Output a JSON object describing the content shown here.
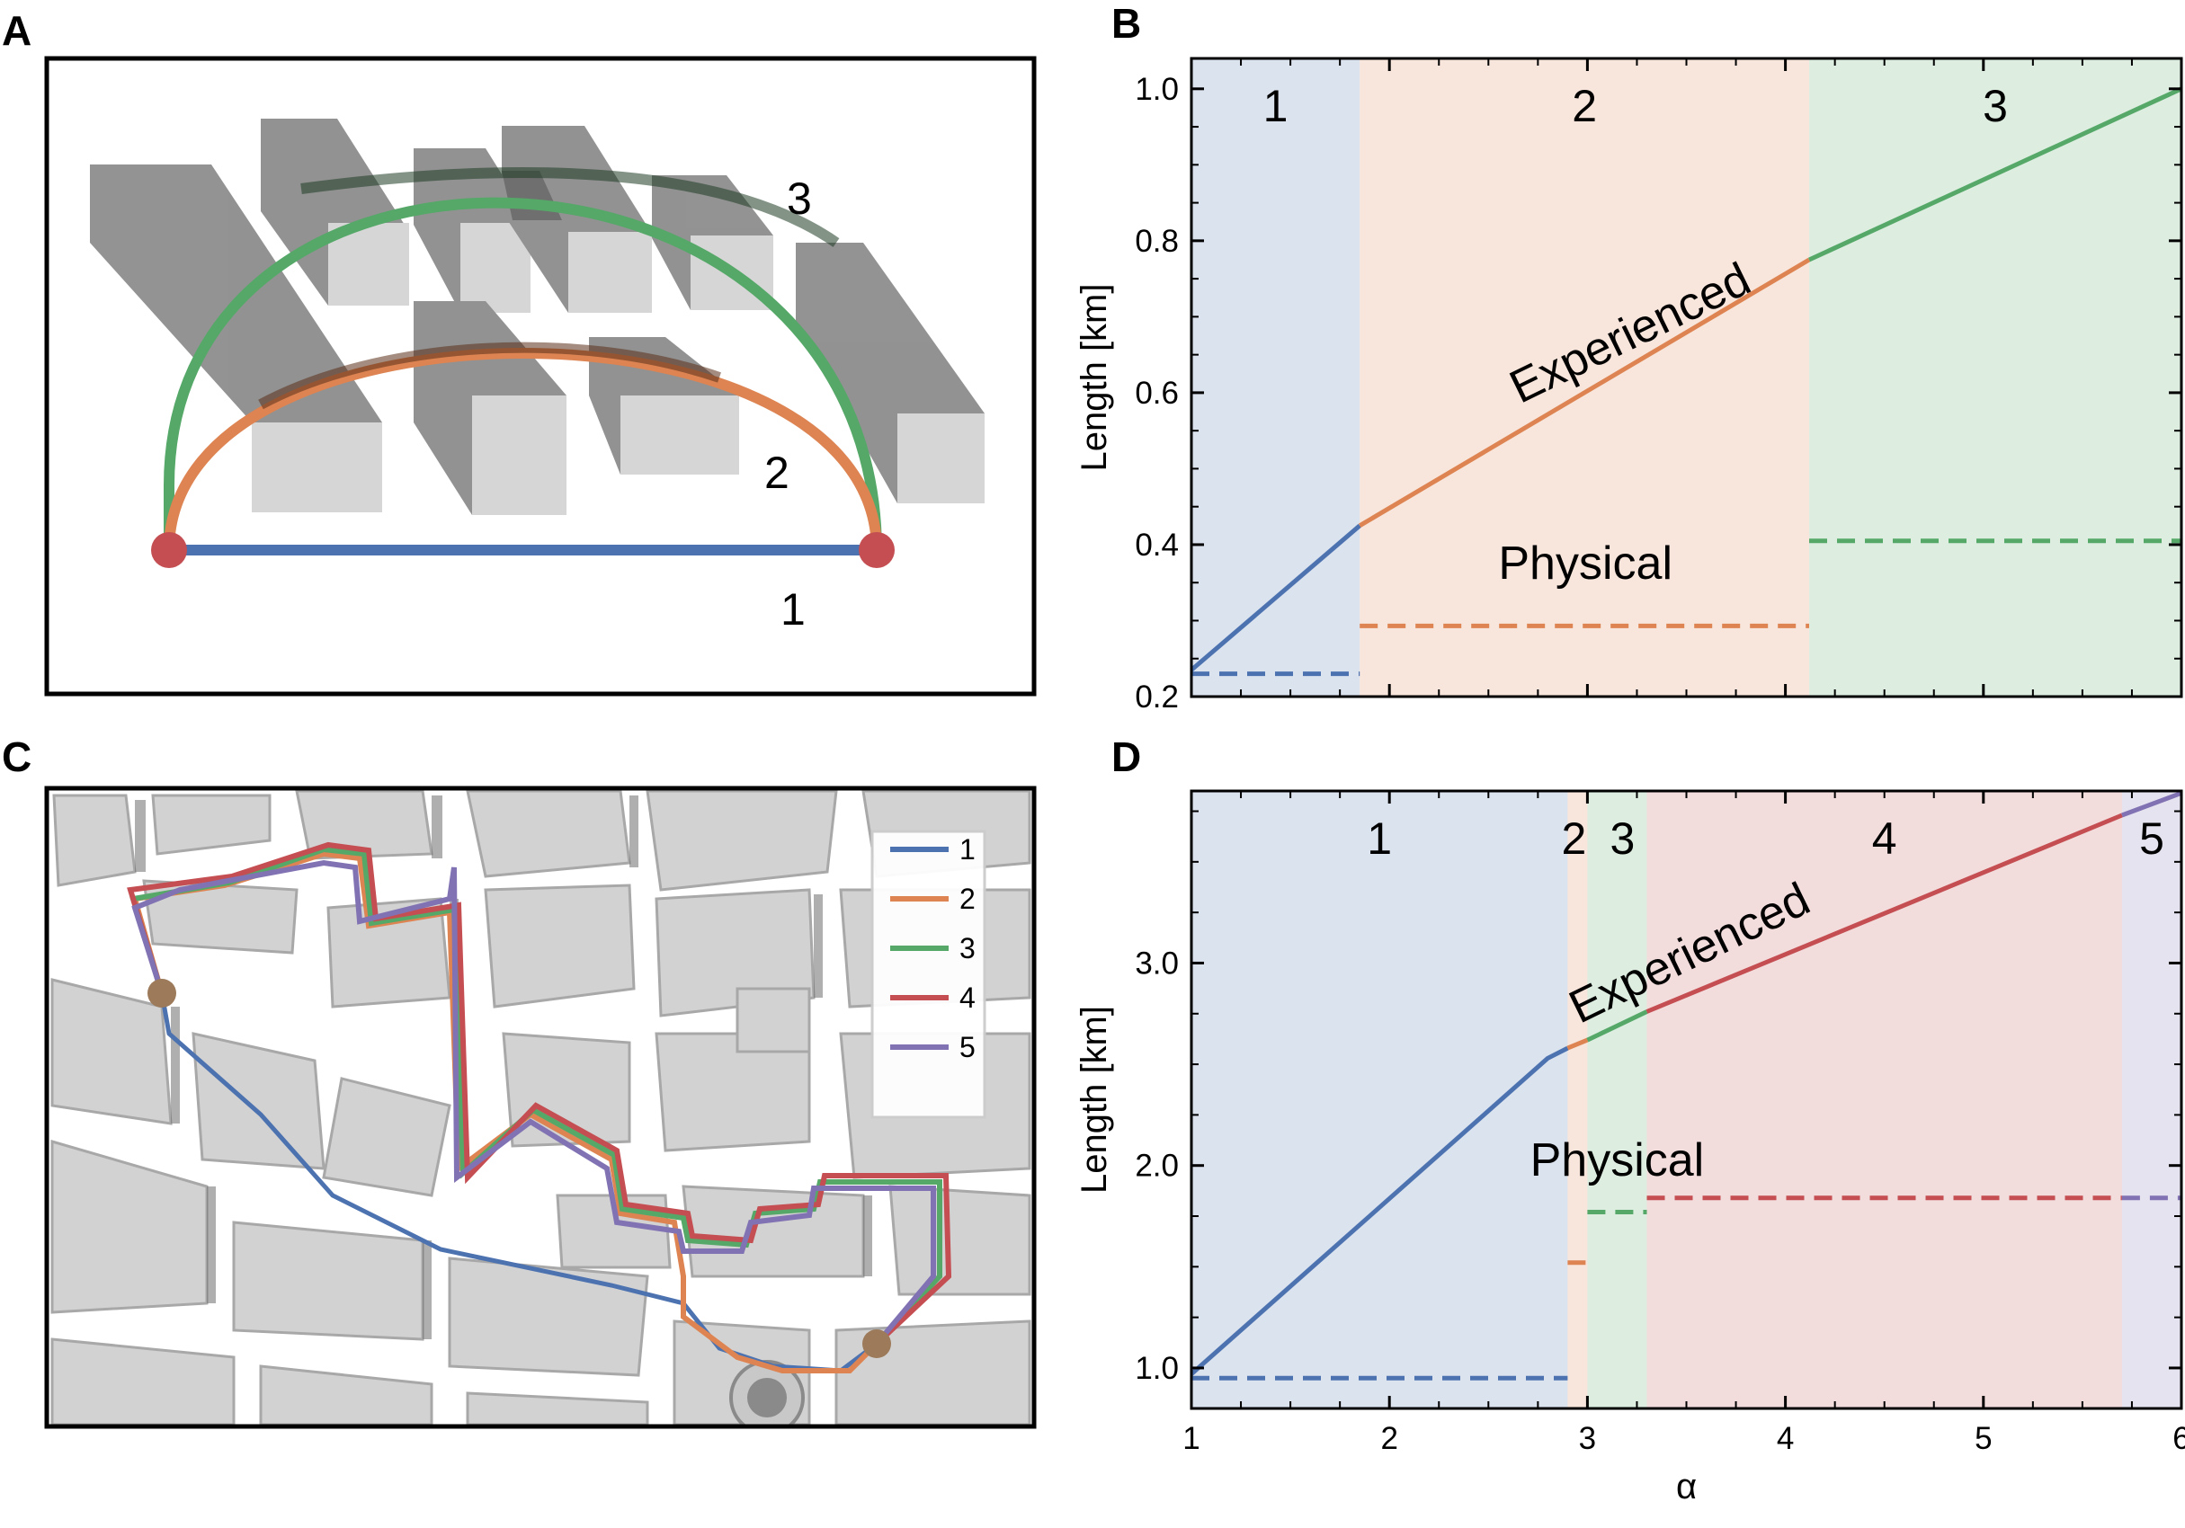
{
  "panels": {
    "A": {
      "letter": "A",
      "route_labels": [
        "3",
        "2",
        "1"
      ]
    },
    "B": {
      "letter": "B"
    },
    "C": {
      "letter": "C",
      "legend": [
        "1",
        "2",
        "3",
        "4",
        "5"
      ]
    },
    "D": {
      "letter": "D"
    }
  },
  "colors": {
    "route1": "#4c72b0",
    "route2": "#dd8452",
    "route3": "#55a868",
    "route4": "#c44e52",
    "route5": "#8172b3",
    "endpoint": "#c44e52",
    "endpoint_map": "#9c7a5a"
  },
  "chart_data": [
    {
      "id": "B",
      "type": "line",
      "title": "",
      "xlabel": "",
      "ylabel": "Length [km]",
      "xlim": [
        1,
        6
      ],
      "ylim": [
        0.2,
        1.04
      ],
      "yticks": [
        0.2,
        0.4,
        0.6,
        0.8,
        1.0
      ],
      "ytick_labels": [
        "0.2",
        "0.4",
        "0.6",
        "0.8",
        "1.0"
      ],
      "show_x_ticklabels": false,
      "regions": [
        {
          "label": "1",
          "from": 1,
          "to": 1.85,
          "color": "#4c72b0"
        },
        {
          "label": "2",
          "from": 1.85,
          "to": 4.12,
          "color": "#dd8452"
        },
        {
          "label": "3",
          "from": 4.12,
          "to": 6,
          "color": "#55a868"
        }
      ],
      "series": [
        {
          "name": "Experienced (route 1)",
          "style": "solid",
          "color": "#4c72b0",
          "x": [
            1,
            1.85
          ],
          "y": [
            0.235,
            0.425
          ]
        },
        {
          "name": "Experienced (route 2)",
          "style": "solid",
          "color": "#dd8452",
          "x": [
            1.85,
            4.12
          ],
          "y": [
            0.425,
            0.775
          ]
        },
        {
          "name": "Experienced (route 3)",
          "style": "solid",
          "color": "#55a868",
          "x": [
            4.12,
            6
          ],
          "y": [
            0.775,
            1.0
          ]
        },
        {
          "name": "Physical (route 1)",
          "style": "dashed",
          "color": "#4c72b0",
          "x": [
            1,
            1.85
          ],
          "y": [
            0.23,
            0.23
          ]
        },
        {
          "name": "Physical (route 2)",
          "style": "dashed",
          "color": "#dd8452",
          "x": [
            1.85,
            4.12
          ],
          "y": [
            0.293,
            0.293
          ]
        },
        {
          "name": "Physical (route 3)",
          "style": "dashed",
          "color": "#55a868",
          "x": [
            4.12,
            6
          ],
          "y": [
            0.405,
            0.405
          ]
        }
      ],
      "annotations": [
        {
          "text": "Experienced",
          "x": 3.25,
          "y": 0.66,
          "angle": -26
        },
        {
          "text": "Physical",
          "x": 2.99,
          "y": 0.355,
          "angle": 0
        }
      ]
    },
    {
      "id": "D",
      "type": "line",
      "title": "",
      "xlabel": "α",
      "ylabel": "Length [km]",
      "xlim": [
        1,
        6
      ],
      "ylim": [
        0.8,
        3.85
      ],
      "xticks": [
        1,
        2,
        3,
        4,
        5,
        6
      ],
      "xtick_labels": [
        "1",
        "2",
        "3",
        "4",
        "5",
        "6"
      ],
      "yticks": [
        1.0,
        2.0,
        3.0
      ],
      "ytick_labels": [
        "1.0",
        "2.0",
        "3.0"
      ],
      "regions": [
        {
          "label": "1",
          "from": 1,
          "to": 2.9,
          "color": "#4c72b0"
        },
        {
          "label": "2",
          "from": 2.9,
          "to": 3.0,
          "color": "#dd8452"
        },
        {
          "label": "3",
          "from": 3.0,
          "to": 3.3,
          "color": "#55a868"
        },
        {
          "label": "4",
          "from": 3.3,
          "to": 5.7,
          "color": "#c44e52"
        },
        {
          "label": "5",
          "from": 5.7,
          "to": 6,
          "color": "#8172b3"
        }
      ],
      "series": [
        {
          "name": "Experienced (route 1)",
          "style": "solid",
          "color": "#4c72b0",
          "x": [
            1,
            2.8,
            2.9
          ],
          "y": [
            0.97,
            2.53,
            2.58
          ]
        },
        {
          "name": "Experienced (route 2)",
          "style": "solid",
          "color": "#dd8452",
          "x": [
            2.9,
            3.0
          ],
          "y": [
            2.58,
            2.62
          ]
        },
        {
          "name": "Experienced (route 3)",
          "style": "solid",
          "color": "#55a868",
          "x": [
            3.0,
            3.3
          ],
          "y": [
            2.62,
            2.76
          ]
        },
        {
          "name": "Experienced (route 4)",
          "style": "solid",
          "color": "#c44e52",
          "x": [
            3.3,
            5.7
          ],
          "y": [
            2.76,
            3.73
          ]
        },
        {
          "name": "Experienced (route 5)",
          "style": "solid",
          "color": "#8172b3",
          "x": [
            5.7,
            6
          ],
          "y": [
            3.73,
            3.84
          ]
        },
        {
          "name": "Physical (route 1)",
          "style": "dashed",
          "color": "#4c72b0",
          "x": [
            1,
            2.9
          ],
          "y": [
            0.95,
            0.95
          ]
        },
        {
          "name": "Physical (route 2)",
          "style": "dashed",
          "color": "#dd8452",
          "x": [
            2.9,
            3.0
          ],
          "y": [
            1.52,
            1.52
          ]
        },
        {
          "name": "Physical (route 3)",
          "style": "dashed",
          "color": "#55a868",
          "x": [
            3.0,
            3.3
          ],
          "y": [
            1.77,
            1.77
          ]
        },
        {
          "name": "Physical (route 4)",
          "style": "dashed",
          "color": "#c44e52",
          "x": [
            3.3,
            5.7
          ],
          "y": [
            1.84,
            1.84
          ]
        },
        {
          "name": "Physical (route 5)",
          "style": "dashed",
          "color": "#8172b3",
          "x": [
            5.7,
            6
          ],
          "y": [
            1.84,
            1.84
          ]
        }
      ],
      "annotations": [
        {
          "text": "Experienced",
          "x": 3.55,
          "y": 2.98,
          "angle": -26
        },
        {
          "text": "Physical",
          "x": 3.15,
          "y": 1.95,
          "angle": 0
        }
      ]
    }
  ]
}
